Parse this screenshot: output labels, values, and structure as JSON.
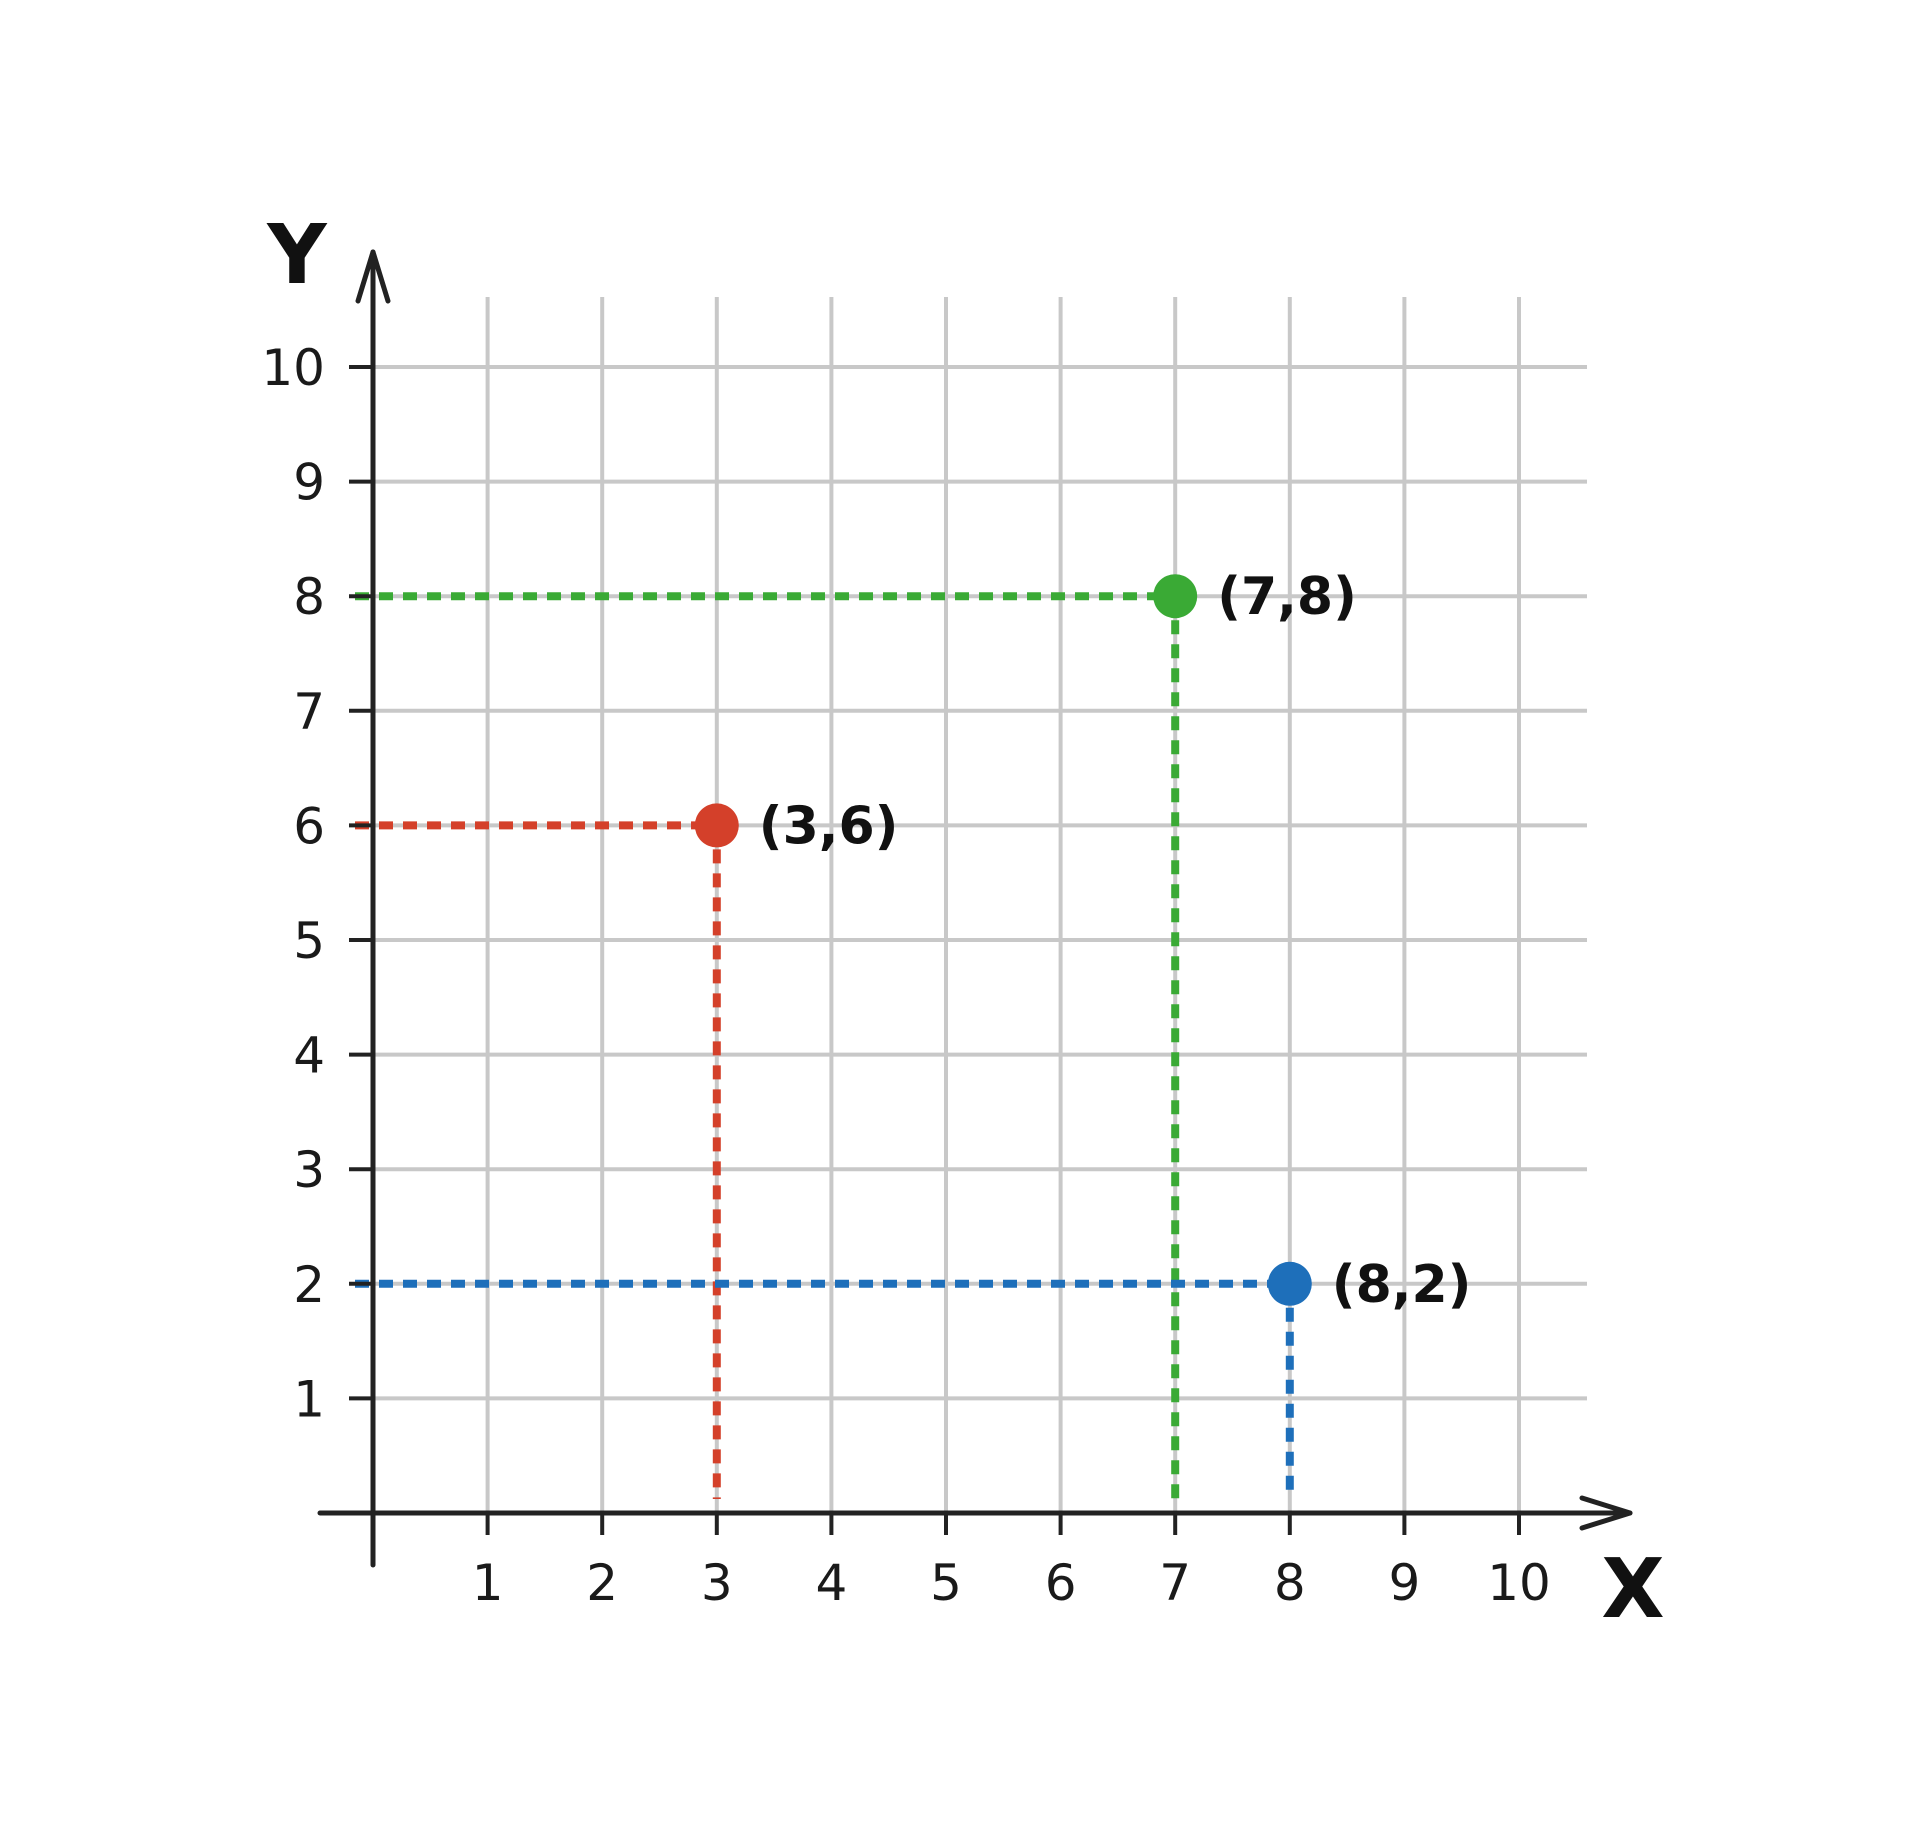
{
  "chart_data": {
    "type": "scatter",
    "xlabel": "X",
    "ylabel": "Y",
    "xlim": [
      0,
      10
    ],
    "ylim": [
      0,
      10
    ],
    "x_ticks": [
      "1",
      "2",
      "3",
      "4",
      "5",
      "6",
      "7",
      "8",
      "9",
      "10"
    ],
    "y_ticks": [
      "1",
      "2",
      "3",
      "4",
      "5",
      "6",
      "7",
      "8",
      "9",
      "10"
    ],
    "grid": true,
    "points": [
      {
        "x": 3,
        "y": 6,
        "label": "(3,6)",
        "color": "#d4402a"
      },
      {
        "x": 7,
        "y": 8,
        "label": "(7,8)",
        "color": "#3aaa35"
      },
      {
        "x": 8,
        "y": 2,
        "label": "(8,2)",
        "color": "#1e6fba"
      }
    ],
    "axis_color": "#222222",
    "grid_color": "#c8c8c8"
  }
}
